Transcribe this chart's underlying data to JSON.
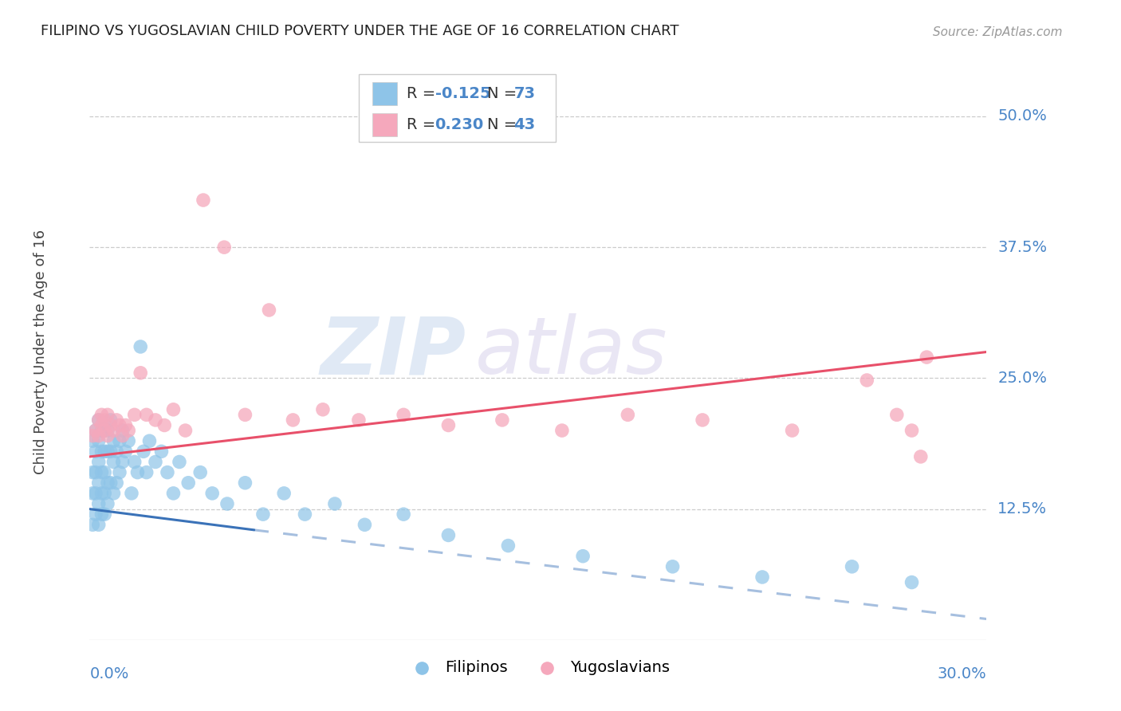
{
  "title": "FILIPINO VS YUGOSLAVIAN CHILD POVERTY UNDER THE AGE OF 16 CORRELATION CHART",
  "source": "Source: ZipAtlas.com",
  "ylabel": "Child Poverty Under the Age of 16",
  "ytick_labels": [
    "50.0%",
    "37.5%",
    "25.0%",
    "12.5%"
  ],
  "ytick_values": [
    0.5,
    0.375,
    0.25,
    0.125
  ],
  "xmin": 0.0,
  "xmax": 0.3,
  "ymin": 0.0,
  "ymax": 0.55,
  "filipino_color": "#8ec4e8",
  "yugoslav_color": "#f5a8bc",
  "filipino_line_color": "#3a72b8",
  "yugoslav_line_color": "#e8506a",
  "watermark_zip": "ZIP",
  "watermark_atlas": "atlas",
  "filipino_R": -0.125,
  "yugoslav_R": 0.23,
  "filipino_N": 73,
  "yugoslav_N": 43,
  "fil_line_x0": 0.0,
  "fil_line_y0": 0.125,
  "fil_line_x_solid_end": 0.055,
  "fil_line_y_solid_end": 0.105,
  "fil_line_x1": 0.3,
  "fil_line_y1": 0.02,
  "yug_line_x0": 0.0,
  "yug_line_y0": 0.175,
  "yug_line_x1": 0.3,
  "yug_line_y1": 0.275,
  "filipino_x": [
    0.001,
    0.001,
    0.001,
    0.001,
    0.002,
    0.002,
    0.002,
    0.002,
    0.002,
    0.003,
    0.003,
    0.003,
    0.003,
    0.003,
    0.003,
    0.004,
    0.004,
    0.004,
    0.004,
    0.004,
    0.005,
    0.005,
    0.005,
    0.005,
    0.005,
    0.006,
    0.006,
    0.006,
    0.006,
    0.007,
    0.007,
    0.007,
    0.008,
    0.008,
    0.008,
    0.009,
    0.009,
    0.01,
    0.01,
    0.011,
    0.011,
    0.012,
    0.013,
    0.014,
    0.015,
    0.016,
    0.017,
    0.018,
    0.019,
    0.02,
    0.022,
    0.024,
    0.026,
    0.028,
    0.03,
    0.033,
    0.037,
    0.041,
    0.046,
    0.052,
    0.058,
    0.065,
    0.072,
    0.082,
    0.092,
    0.105,
    0.12,
    0.14,
    0.165,
    0.195,
    0.225,
    0.255,
    0.275
  ],
  "filipino_y": [
    0.19,
    0.16,
    0.14,
    0.11,
    0.2,
    0.18,
    0.16,
    0.14,
    0.12,
    0.21,
    0.19,
    0.17,
    0.15,
    0.13,
    0.11,
    0.2,
    0.18,
    0.16,
    0.14,
    0.12,
    0.2,
    0.18,
    0.16,
    0.14,
    0.12,
    0.2,
    0.18,
    0.15,
    0.13,
    0.21,
    0.18,
    0.15,
    0.19,
    0.17,
    0.14,
    0.18,
    0.15,
    0.19,
    0.16,
    0.2,
    0.17,
    0.18,
    0.19,
    0.14,
    0.17,
    0.16,
    0.28,
    0.18,
    0.16,
    0.19,
    0.17,
    0.18,
    0.16,
    0.14,
    0.17,
    0.15,
    0.16,
    0.14,
    0.13,
    0.15,
    0.12,
    0.14,
    0.12,
    0.13,
    0.11,
    0.12,
    0.1,
    0.09,
    0.08,
    0.07,
    0.06,
    0.07,
    0.055
  ],
  "yugoslav_x": [
    0.001,
    0.002,
    0.003,
    0.003,
    0.004,
    0.004,
    0.005,
    0.005,
    0.006,
    0.006,
    0.007,
    0.008,
    0.009,
    0.01,
    0.011,
    0.012,
    0.013,
    0.015,
    0.017,
    0.019,
    0.022,
    0.025,
    0.028,
    0.032,
    0.038,
    0.045,
    0.052,
    0.06,
    0.068,
    0.078,
    0.09,
    0.105,
    0.12,
    0.138,
    0.158,
    0.18,
    0.205,
    0.235,
    0.26,
    0.27,
    0.275,
    0.278,
    0.28
  ],
  "yugoslav_y": [
    0.195,
    0.2,
    0.21,
    0.195,
    0.205,
    0.215,
    0.2,
    0.21,
    0.195,
    0.215,
    0.205,
    0.2,
    0.21,
    0.205,
    0.195,
    0.205,
    0.2,
    0.215,
    0.255,
    0.215,
    0.21,
    0.205,
    0.22,
    0.2,
    0.42,
    0.375,
    0.215,
    0.315,
    0.21,
    0.22,
    0.21,
    0.215,
    0.205,
    0.21,
    0.2,
    0.215,
    0.21,
    0.2,
    0.248,
    0.215,
    0.2,
    0.175,
    0.27
  ]
}
